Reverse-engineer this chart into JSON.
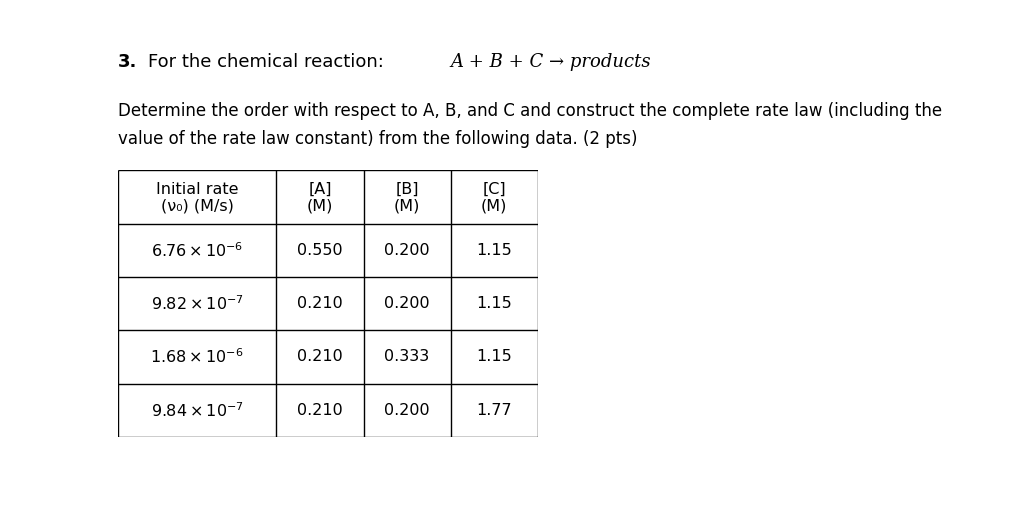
{
  "title_number": "3.",
  "title_text": "For the chemical reaction:",
  "reaction": "A + B + C → products",
  "description_line1": "Determine the order with respect to A, B, and C and construct the complete rate law (including the",
  "description_line2": "value of the rate law constant) from the following data. (2 pts)",
  "col_headers": [
    [
      "Initial rate",
      "(ν₀) (M/s)"
    ],
    [
      "[A]",
      "(M)"
    ],
    [
      "[B]",
      "(M)"
    ],
    [
      "[C]",
      "(M)"
    ]
  ],
  "rows": [
    [
      "6.76 × 10⁻⁶",
      "0.550",
      "0.200",
      "1.15"
    ],
    [
      "9.82 × 10⁻⁷",
      "0.210",
      "0.200",
      "1.15"
    ],
    [
      "1.68 × 10⁻⁶",
      "0.210",
      "0.333",
      "1.15"
    ],
    [
      "9.84 × 10⁻⁷",
      "0.210",
      "0.200",
      "1.77"
    ]
  ],
  "bg_color": "#ffffff",
  "text_color": "#000000",
  "border_color": "#000000",
  "font_size_title": 13,
  "font_size_body": 12,
  "font_size_table": 11.5
}
